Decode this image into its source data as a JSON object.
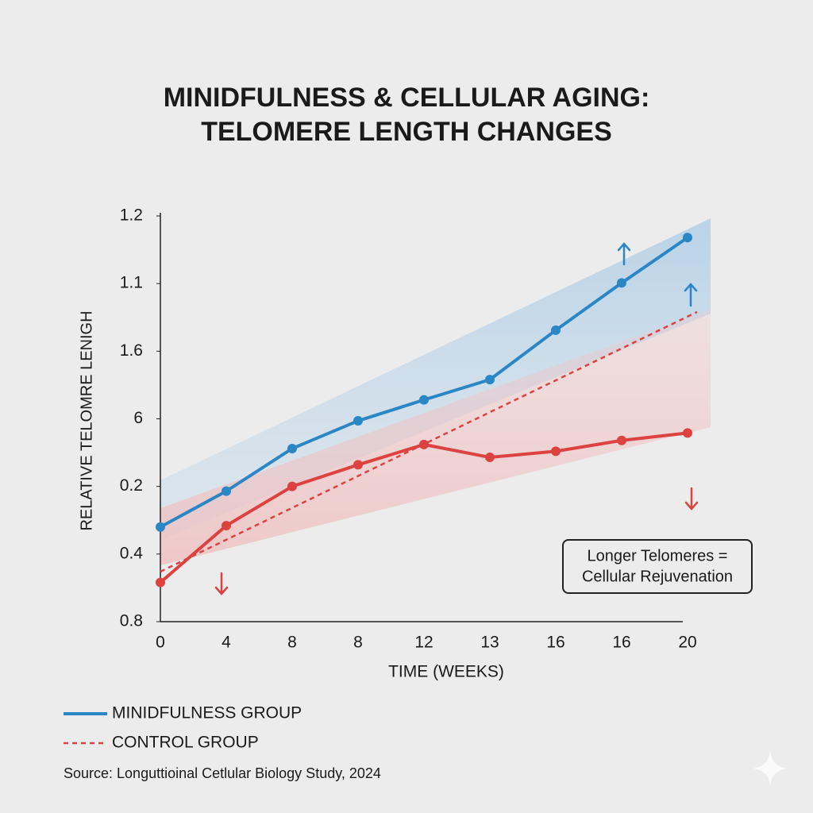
{
  "chart_data": {
    "type": "line",
    "title": [
      "MINIDFULNESS & CELLULAR AGING:",
      "TELOMERE LENGTH CHANGES"
    ],
    "x_label": "TIME (WEEKS)",
    "y_label": "RELATIVE TELOMRE LENIGH",
    "categories": [
      "0",
      "4",
      "8",
      "8",
      "12",
      "13",
      "16",
      "16",
      "20"
    ],
    "ylim": [
      0,
      6
    ],
    "yticks": [
      {
        "value": 0,
        "label": "0.8"
      },
      {
        "value": 1,
        "label": "0.4"
      },
      {
        "value": 2,
        "label": "0.2"
      },
      {
        "value": 3,
        "label": "6"
      },
      {
        "value": 4,
        "label": "1.6"
      },
      {
        "value": 5,
        "label": "1.1"
      },
      {
        "value": 6,
        "label": "1.2"
      }
    ],
    "grid": false,
    "series": [
      {
        "name": "MINIDFULNESS GROUP",
        "color": "#2b86c5",
        "line_style": "solid",
        "values": [
          1.4,
          1.93,
          2.56,
          2.97,
          3.28,
          3.58,
          4.31,
          5.01,
          5.68
        ]
      },
      {
        "name": "CONTROL GROUP",
        "color": "#dc4240",
        "line_style": "dashed",
        "values": [
          0.58,
          1.42,
          2.0,
          2.32,
          2.62,
          2.43,
          2.52,
          2.68,
          2.79
        ],
        "trend": [
          0.74,
          4.58
        ]
      }
    ],
    "annotation": [
      "Longer Telomeres =",
      "Cellular Rejuvenation"
    ],
    "source": "Source: Longuttioinal Cetlular Biology Study, 2024"
  }
}
